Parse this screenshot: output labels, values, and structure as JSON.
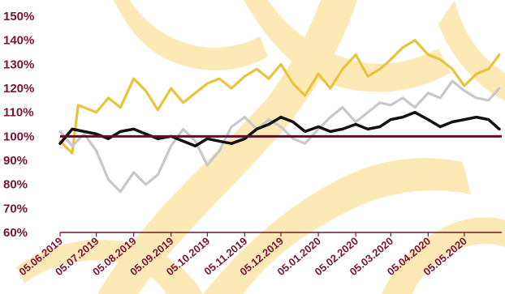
{
  "chart_data": {
    "type": "line",
    "title": "",
    "xlabel": "",
    "ylabel": "",
    "y_tick_labels": [
      "60%",
      "70%",
      "80%",
      "90%",
      "100%",
      "110%",
      "120%",
      "130%",
      "140%",
      "150%"
    ],
    "x_tick_labels": [
      "05.06.2019",
      "05.07.2019",
      "05.08.2019",
      "05.09.2019",
      "05.10.2019",
      "05.11.2019",
      "05.12.2019",
      "05.01.2020",
      "05.02.2020",
      "05.03.2020",
      "05.04.2020",
      "05.05.2020"
    ],
    "ylim": [
      60,
      150
    ],
    "grid": false,
    "legend": "none",
    "reference_line": {
      "value": 100,
      "color": "#6b0a2e"
    },
    "background_watermark": {
      "color": "#fce9b6"
    },
    "series": [
      {
        "color": "#e8c43a",
        "x": [
          "05.06.2019",
          "15.06.2019",
          "20.06.2019",
          "05.07.2019",
          "15.07.2019",
          "25.07.2019",
          "05.08.2019",
          "15.08.2019",
          "25.08.2019",
          "05.09.2019",
          "15.09.2019",
          "25.09.2019",
          "05.10.2019",
          "15.10.2019",
          "25.10.2019",
          "05.11.2019",
          "15.11.2019",
          "25.11.2019",
          "05.12.2019",
          "15.12.2019",
          "25.12.2019",
          "05.01.2020",
          "15.01.2020",
          "25.01.2020",
          "05.02.2020",
          "15.02.2020",
          "25.02.2020",
          "05.03.2020",
          "15.03.2020",
          "25.03.2020",
          "05.04.2020",
          "15.04.2020",
          "25.04.2020",
          "05.05.2020",
          "15.05.2020",
          "25.05.2020",
          "03.06.2020"
        ],
        "values": [
          98,
          93,
          113,
          110,
          116,
          112,
          124,
          119,
          111,
          120,
          114,
          118,
          122,
          124,
          120,
          125,
          128,
          124,
          130,
          122,
          117,
          126,
          120,
          128,
          134,
          125,
          128,
          132,
          137,
          140,
          134,
          132,
          128,
          121,
          126,
          128,
          134
        ]
      },
      {
        "color": "#c8c8c8",
        "x": [
          "05.06.2019",
          "15.06.2019",
          "25.06.2019",
          "05.07.2019",
          "15.07.2019",
          "25.07.2019",
          "05.08.2019",
          "15.08.2019",
          "25.08.2019",
          "05.09.2019",
          "15.09.2019",
          "25.09.2019",
          "05.10.2019",
          "15.10.2019",
          "25.10.2019",
          "05.11.2019",
          "15.11.2019",
          "25.11.2019",
          "05.12.2019",
          "15.12.2019",
          "25.12.2019",
          "05.01.2020",
          "15.01.2020",
          "25.01.2020",
          "05.02.2020",
          "15.02.2020",
          "25.02.2020",
          "05.03.2020",
          "15.03.2020",
          "25.03.2020",
          "05.04.2020",
          "15.04.2020",
          "25.04.2020",
          "05.05.2020",
          "15.05.2020",
          "25.05.2020",
          "03.06.2020"
        ],
        "values": [
          102,
          96,
          101,
          94,
          82,
          77,
          85,
          80,
          84,
          96,
          103,
          98,
          88,
          94,
          104,
          108,
          103,
          107,
          104,
          99,
          97,
          103,
          108,
          112,
          106,
          110,
          114,
          113,
          116,
          112,
          118,
          116,
          123,
          119,
          116,
          115,
          120
        ]
      },
      {
        "color": "#111111",
        "x": [
          "05.06.2019",
          "15.06.2019",
          "25.06.2019",
          "05.07.2019",
          "15.07.2019",
          "25.07.2019",
          "05.08.2019",
          "15.08.2019",
          "25.08.2019",
          "05.09.2019",
          "15.09.2019",
          "25.09.2019",
          "05.10.2019",
          "15.10.2019",
          "25.10.2019",
          "05.11.2019",
          "15.11.2019",
          "25.11.2019",
          "05.12.2019",
          "15.12.2019",
          "25.12.2019",
          "05.01.2020",
          "15.01.2020",
          "25.01.2020",
          "05.02.2020",
          "15.02.2020",
          "25.02.2020",
          "05.03.2020",
          "15.03.2020",
          "25.03.2020",
          "05.04.2020",
          "15.04.2020",
          "25.04.2020",
          "05.05.2020",
          "15.05.2020",
          "25.05.2020",
          "03.06.2020"
        ],
        "values": [
          97,
          103,
          102,
          101,
          99,
          102,
          103,
          101,
          99,
          100,
          98,
          96,
          99,
          98,
          97,
          99,
          103,
          105,
          108,
          106,
          102,
          104,
          102,
          103,
          105,
          103,
          104,
          107,
          108,
          110,
          107,
          104,
          106,
          107,
          108,
          107,
          103
        ]
      }
    ]
  }
}
